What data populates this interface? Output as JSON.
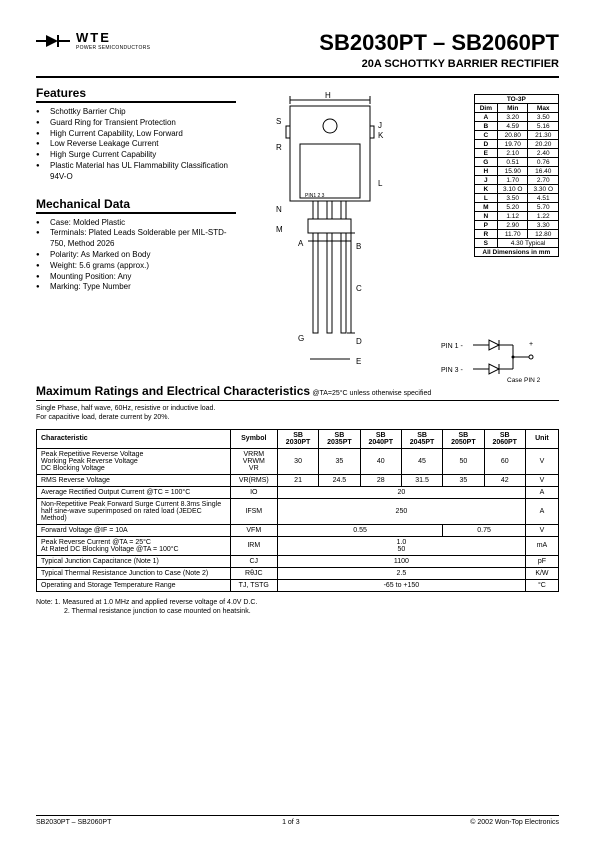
{
  "logo": {
    "brand": "WTE",
    "sub": "POWER SEMICONDUCTORS"
  },
  "title": {
    "main": "SB2030PT – SB2060PT",
    "sub": "20A SCHOTTKY BARRIER RECTIFIER"
  },
  "sections": {
    "features": "Features",
    "mechanical": "Mechanical Data",
    "max": "Maximum Ratings and Electrical Characteristics",
    "max_cond": "@TA=25°C unless otherwise specified"
  },
  "features": [
    "Schottky Barrier Chip",
    "Guard Ring for Transient Protection",
    "High Current Capability, Low Forward",
    "Low Reverse Leakage Current",
    "High Surge Current Capability",
    "Plastic Material has UL Flammability Classification 94V-O"
  ],
  "mechanical": [
    "Case: Molded Plastic",
    "Terminals: Plated Leads Solderable per MIL-STD-750, Method 2026",
    "Polarity: As Marked on Body",
    "Weight: 5.6 grams (approx.)",
    "Mounting Position: Any",
    "Marking: Type Number"
  ],
  "dim_table": {
    "header": "TO-3P",
    "cols": [
      "Dim",
      "Min",
      "Max"
    ],
    "rows": [
      [
        "A",
        "3.20",
        "3.50"
      ],
      [
        "B",
        "4.59",
        "5.16"
      ],
      [
        "C",
        "20.80",
        "21.30"
      ],
      [
        "D",
        "19.70",
        "20.20"
      ],
      [
        "E",
        "2.10",
        "2.40"
      ],
      [
        "G",
        "0.51",
        "0.76"
      ],
      [
        "H",
        "15.90",
        "16.40"
      ],
      [
        "J",
        "1.70",
        "2.70"
      ],
      [
        "K",
        "3.10 O",
        "3.30 O"
      ],
      [
        "L",
        "3.50",
        "4.51"
      ],
      [
        "M",
        "5.20",
        "5.70"
      ],
      [
        "N",
        "1.12",
        "1.22"
      ],
      [
        "P",
        "2.90",
        "3.30"
      ],
      [
        "R",
        "11.70",
        "12.80"
      ]
    ],
    "s_row": [
      "S",
      "4.30 Typical"
    ],
    "footer": "All Dimensions in mm"
  },
  "pin_labels": {
    "p1": "PIN 1 -",
    "p3": "PIN 3 -",
    "case": "Case PIN 2"
  },
  "max_notes": {
    "l1": "Single Phase, half wave, 60Hz, resistive or inductive load.",
    "l2": "For capacitive load, derate current by 20%."
  },
  "elec_table": {
    "header": [
      "Characteristic",
      "Symbol",
      "SB 2030PT",
      "SB 2035PT",
      "SB 2040PT",
      "SB 2045PT",
      "SB 2050PT",
      "SB 2060PT",
      "Unit"
    ],
    "rows": [
      {
        "char": "Peak Repetitive Reverse Voltage\nWorking Peak Reverse Voltage\nDC Blocking Voltage",
        "sym": "VRRM\nVRWM\nVR",
        "vals": [
          "30",
          "35",
          "40",
          "45",
          "50",
          "60"
        ],
        "unit": "V"
      },
      {
        "char": "RMS Reverse Voltage",
        "sym": "VR(RMS)",
        "vals": [
          "21",
          "24.5",
          "28",
          "31.5",
          "35",
          "42"
        ],
        "unit": "V"
      },
      {
        "char": "Average Rectified Output Current           @TC = 100°C",
        "sym": "IO",
        "span": "20",
        "unit": "A"
      },
      {
        "char": "Non-Repetitive Peak Forward Surge Current 8.3ms Single half sine-wave superimposed on rated load (JEDEC Method)",
        "sym": "IFSM",
        "span": "250",
        "unit": "A"
      },
      {
        "char": "Forward Voltage                                      @IF = 10A",
        "sym": "VFM",
        "vals2": [
          "0.55",
          "0.75"
        ],
        "unit": "V"
      },
      {
        "char": "Peak Reverse Current                           @TA = 25°C\nAt Rated DC Blocking Voltage              @TA = 100°C",
        "sym": "IRM",
        "span": "1.0\n50",
        "unit": "mA"
      },
      {
        "char": "Typical Junction Capacitance (Note 1)",
        "sym": "CJ",
        "span": "1100",
        "unit": "pF"
      },
      {
        "char": "Typical Thermal Resistance Junction to Case (Note 2)",
        "sym": "RθJC",
        "span": "2.5",
        "unit": "K/W"
      },
      {
        "char": "Operating and Storage Temperature Range",
        "sym": "TJ, TSTG",
        "span": "-65 to +150",
        "unit": "°C"
      }
    ]
  },
  "notes": {
    "l1": "Note:  1. Measured at 1.0 MHz and applied reverse voltage of 4.0V D.C.",
    "l2": "2. Thermal resistance junction to case mounted on heatsink."
  },
  "footer": {
    "left": "SB2030PT – SB2060PT",
    "mid": "1  of  3",
    "right": "© 2002 Won-Top Electronics"
  },
  "colors": {
    "text": "#000000",
    "bg": "#ffffff"
  }
}
